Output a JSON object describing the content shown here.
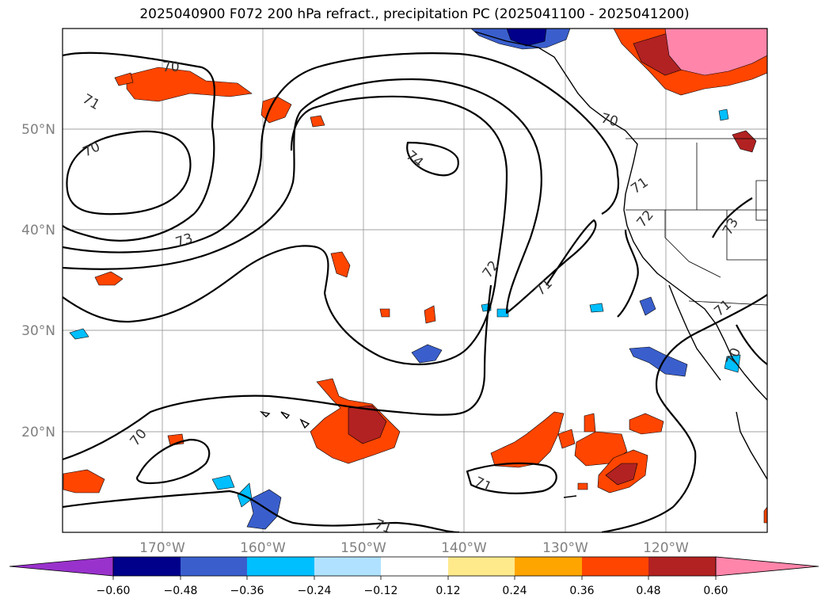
{
  "title": "2025040900 F072 200 hPa refract., precipitation PC (2025041100 - 2025041200)",
  "map": {
    "lat_ticks": [
      "50°N",
      "40°N",
      "30°N",
      "20°N"
    ],
    "lon_ticks": [
      "170°W",
      "160°W",
      "150°W",
      "140°W",
      "130°W",
      "120°W"
    ],
    "contour_labels": [
      "70",
      "71",
      "70",
      "73",
      "74",
      "72",
      "71",
      "70",
      "71",
      "72",
      "73",
      "71",
      "70",
      "70",
      "71",
      "71"
    ],
    "colors": {
      "c1": "#9932cc",
      "c2": "#00008b",
      "c3": "#3a5fcd",
      "c4": "#00bfff",
      "c5": "#b0e2ff",
      "c6": "#ffffff",
      "c7": "#fee98b",
      "c8": "#ffa500",
      "c9": "#ff4500",
      "c10": "#b22222",
      "c11": "#ff85aa"
    }
  },
  "colorbar": {
    "labels": [
      "−0.60",
      "−0.48",
      "−0.36",
      "−0.24",
      "−0.12",
      "0.12",
      "0.24",
      "0.36",
      "0.48",
      "0.60"
    ],
    "colors": [
      "#9932cc",
      "#00008b",
      "#3a5fcd",
      "#00bfff",
      "#b0e2ff",
      "#ffffff",
      "#fee98b",
      "#ffa500",
      "#ff4500",
      "#b22222",
      "#ff85aa"
    ]
  }
}
